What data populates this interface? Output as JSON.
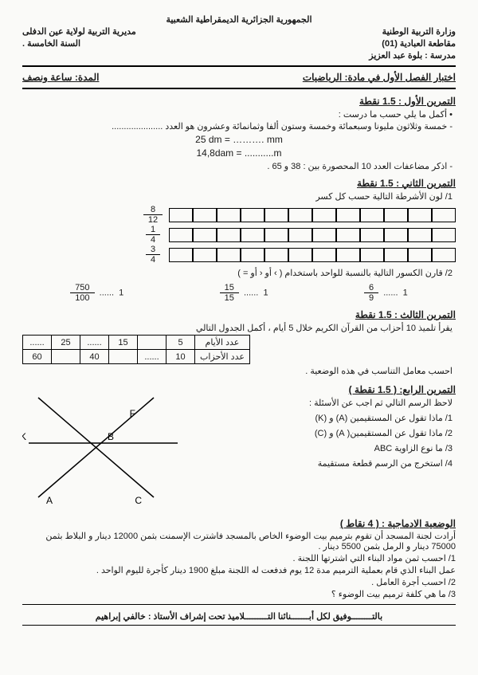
{
  "header": {
    "country": "الجمهورية الجزائرية الديمقراطية الشعبية",
    "ministry": "وزارة التربية الوطنية",
    "directorate": "مديرية التربية لولاية عين الدفلى",
    "district": "مقاطعة العبادية (01)",
    "level": "السنة الخامسة .",
    "school": "مدرسة : بلوة عبد العزيز"
  },
  "title": {
    "exam": "اختبار الفصل الأول في  مادة:  الرياضيات",
    "duration": "المدة: ساعة ونصف"
  },
  "ex1": {
    "title": "التمرين الأول : 1.5 نقطة",
    "intro": "• أكمل ما يلي حسب ما درست :",
    "number_line": "- خمسة وثلاثون مليونا وسبعمائة وخمسة وستون ألفا وثمانمائة وعشرون هو العدد .....................",
    "conv_a": "25 dm = ………. mm",
    "conv_b": "14,8dam = ...........m",
    "multiples": "- اذكر مضاعفات العدد 10 المحصورة بين : 38  و 65 ."
  },
  "ex2": {
    "title": "التمرين الثاني : 1.5 نقطة",
    "q1": "1/ لون الأشرطة التالية  حسب كل كسر",
    "fractions": [
      {
        "num": "8",
        "den": "12"
      },
      {
        "num": "1",
        "den": "4"
      },
      {
        "num": "3",
        "den": "4"
      }
    ],
    "cells": 12,
    "q2": "2/ قارن الكسور التالية بالنسبة للواحد باستخدام ( ›  أو  ‹  أو  = )",
    "compare": [
      {
        "num": "750",
        "den": "100"
      },
      {
        "num": "15",
        "den": "15"
      },
      {
        "num": "6",
        "den": "9"
      }
    ],
    "one": "1"
  },
  "ex3": {
    "title": "التمرين الثالث : 1.5 نقطة",
    "q": "يقرأ تلميذ 10 أحزاب من القرآن الكريم خلال 5 أيام ، أكمل الجدول التالي",
    "table": {
      "row1_label": "عدد الأيام",
      "row2_label": "عدد الأحزاب",
      "cols": [
        "5",
        "",
        "15",
        "......",
        "25",
        "......"
      ],
      "vals": [
        "10",
        "......",
        "",
        "40",
        "",
        "60"
      ]
    },
    "proportion": "احسب معامل التناسب في هذه الوضعية ."
  },
  "ex4": {
    "title": "التمرين الرابع: ( 1.5 نقطة )",
    "intro": "لاحظ الرسم التالي ثم اجب عن الأسئلة :",
    "q1": "1/ ماذا تقول عن المستقيمين  (A)  و  (K)",
    "q2": "2/ ماذا تقول عن المستقيمين(  A) و (C)",
    "q3": "3/ ما نوع الزاوية   ABC",
    "q4": "4/ استخرج من الرسم قطعة مستقيمة",
    "labels": {
      "F": "F",
      "K": "K",
      "B": "B",
      "A": "A",
      "C": "C"
    }
  },
  "situation": {
    "title": "الوضعية الادماجية :  ( 4 نقاط )",
    "p1": "أرادت لجنة المسجد أن تقوم بترميم بيت الوضوء الخاص بالمسجد فاشترت الإسمنت بثمن 12000 دينار و البلاط بثمن 75000 دينار و الرمل بثمن 5500 دينار .",
    "q1": "1/ احسب ثمن مواد البناء التي اشترتها اللجنة .",
    "p2": "عمل البناء الذي قام بعملية الترميم مدة 12 يوم فدفعت له اللجنة مبلغ 1900 دينار كأجرة لليوم الواحد .",
    "q2": "2/ احسب أجرة العامل .",
    "q3": "3/ ما هي كلفة ترميم بيت الوضوء ؟"
  },
  "footer": {
    "text1": "بالتــــــــوفيق لكل أبـــــــنائنا التـــــــــلاميذ    تحت إشراف الأستاذ : خالفي إبراهيم"
  }
}
